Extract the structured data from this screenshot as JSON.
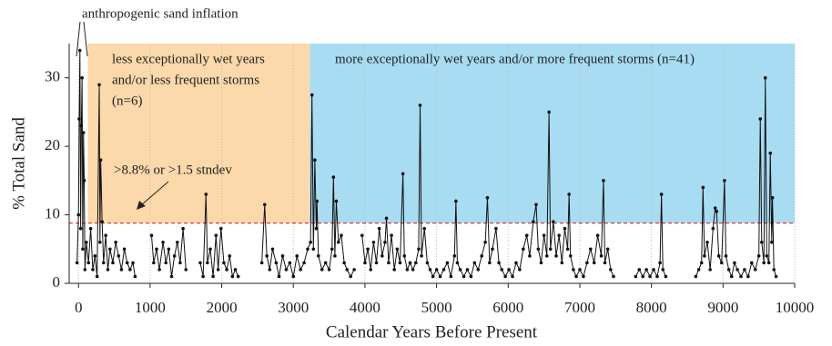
{
  "chart_data": {
    "type": "line",
    "xlabel": "Calendar Years Before Present",
    "ylabel": "% Total Sand",
    "xlim": [
      -130,
      10000
    ],
    "ylim": [
      0,
      35
    ],
    "xticks": [
      0,
      1000,
      2000,
      3000,
      4000,
      5000,
      6000,
      7000,
      8000,
      9000,
      10000
    ],
    "yticks": [
      0,
      10,
      20,
      30
    ],
    "grid": true,
    "threshold": 8.8,
    "threshold_color": "#e03a3a",
    "regions": [
      {
        "x0": 130,
        "x1": 3230,
        "y0": 8.8,
        "y1": 35,
        "color": "#fcd9ab"
      },
      {
        "x0": 3230,
        "x1": 10000,
        "y0": 8.8,
        "y1": 35,
        "color": "#a8dcf2"
      }
    ],
    "annotations": [
      [
        "anthropogenic sand inflation"
      ],
      [
        "less exceptionally wet years",
        "and/or less frequent storms",
        "(n=6)"
      ],
      [
        "more exceptionally wet years and/or more frequent storms (n=41)"
      ],
      [
        ">8.8% or >1.5 stndev"
      ]
    ],
    "series": [
      {
        "name": "% Total Sand",
        "color": "#111111",
        "x": [
          -20,
          0,
          10,
          20,
          30,
          40,
          50,
          60,
          70,
          80,
          90,
          110,
          140,
          170,
          200,
          230,
          260,
          290,
          300,
          310,
          330,
          350,
          380,
          410,
          440,
          480,
          520,
          560,
          600,
          640,
          680,
          720,
          760,
          790,
          850,
          1020,
          1050,
          1090,
          1130,
          1180,
          1220,
          1260,
          1300,
          1340,
          1380,
          1420,
          1460,
          1500,
          1600,
          1700,
          1740,
          1780,
          1800,
          1840,
          1880,
          1920,
          1950,
          1990,
          2030,
          2070,
          2110,
          2150,
          2190,
          2230,
          2400,
          2560,
          2600,
          2630,
          2670,
          2710,
          2760,
          2800,
          2850,
          2900,
          2950,
          3000,
          3050,
          3100,
          3150,
          3200,
          3240,
          3260,
          3280,
          3300,
          3320,
          3330,
          3350,
          3400,
          3450,
          3500,
          3540,
          3560,
          3580,
          3600,
          3630,
          3670,
          3710,
          3750,
          3800,
          3850,
          3900,
          3960,
          4000,
          4040,
          4080,
          4120,
          4160,
          4200,
          4240,
          4280,
          4300,
          4330,
          4370,
          4410,
          4450,
          4490,
          4530,
          4550,
          4590,
          4630,
          4670,
          4710,
          4750,
          4770,
          4790,
          4830,
          4870,
          4910,
          4950,
          5000,
          5050,
          5100,
          5150,
          5200,
          5250,
          5270,
          5290,
          5330,
          5380,
          5430,
          5480,
          5530,
          5580,
          5630,
          5680,
          5710,
          5740,
          5780,
          5830,
          5870,
          5910,
          5960,
          6010,
          6060,
          6110,
          6160,
          6210,
          6260,
          6300,
          6350,
          6390,
          6420,
          6460,
          6500,
          6540,
          6570,
          6590,
          6630,
          6670,
          6710,
          6750,
          6790,
          6830,
          6850,
          6870,
          6910,
          6950,
          7000,
          7050,
          7100,
          7150,
          7200,
          7250,
          7300,
          7330,
          7350,
          7390,
          7430,
          7470,
          7600,
          7780,
          7830,
          7880,
          7930,
          7980,
          8030,
          8080,
          8120,
          8140,
          8160,
          8200,
          8400,
          8620,
          8660,
          8700,
          8720,
          8740,
          8780,
          8820,
          8860,
          8890,
          8910,
          8940,
          8980,
          9020,
          9040,
          9080,
          9120,
          9160,
          9200,
          9250,
          9300,
          9350,
          9400,
          9450,
          9500,
          9520,
          9540,
          9570,
          9590,
          9610,
          9640,
          9660,
          9680,
          9690,
          9710,
          9740
        ],
        "values": [
          3,
          10,
          24,
          34,
          8,
          23,
          30,
          5,
          22,
          15,
          2,
          6,
          3,
          8,
          2,
          4,
          1,
          29,
          6,
          18,
          9,
          3,
          7,
          2,
          5,
          3,
          6,
          4,
          2,
          5,
          3,
          2,
          3,
          1,
          null,
          7,
          3,
          5,
          2,
          6,
          3,
          5,
          1,
          4,
          6,
          3,
          8,
          2,
          null,
          3,
          1,
          13,
          3,
          5,
          1,
          7,
          2,
          8,
          3,
          2,
          4,
          1,
          2,
          1,
          null,
          3,
          11.5,
          4,
          2,
          5,
          3,
          1,
          4,
          2,
          3,
          1,
          4,
          2,
          3,
          5,
          6,
          27.5,
          5,
          18,
          8,
          12,
          4,
          2,
          3,
          2,
          5,
          15.5,
          4,
          12,
          6,
          7,
          3,
          2,
          1,
          2,
          null,
          7,
          3,
          5,
          2,
          6,
          3,
          8,
          4,
          6,
          9.5,
          3,
          7,
          2,
          5,
          3,
          16,
          4,
          2,
          3,
          2,
          3,
          5,
          26,
          4,
          8,
          3,
          2,
          1,
          2,
          1,
          2,
          3,
          1,
          4,
          12,
          3,
          2,
          1,
          2,
          1,
          3,
          2,
          4,
          6,
          12.5,
          3,
          5,
          8,
          3,
          2,
          1,
          2,
          1,
          3,
          2,
          5,
          7,
          4,
          9,
          11.5,
          5,
          3,
          7,
          4,
          25,
          5,
          9,
          4,
          7,
          3,
          8,
          5,
          13,
          4,
          2,
          1,
          2,
          1,
          3,
          5,
          3,
          7,
          4,
          15,
          3,
          5,
          2,
          1,
          null,
          1,
          2,
          1,
          2,
          1,
          2,
          1,
          3,
          13,
          2,
          1,
          null,
          1,
          2,
          3,
          14,
          4,
          6,
          2,
          8,
          11,
          10.5,
          4,
          3,
          15,
          4,
          2,
          1,
          3,
          2,
          1,
          2,
          1,
          3,
          2,
          4,
          24,
          6,
          3,
          30,
          4,
          3,
          19,
          6,
          12.5,
          2,
          1
        ]
      }
    ]
  }
}
